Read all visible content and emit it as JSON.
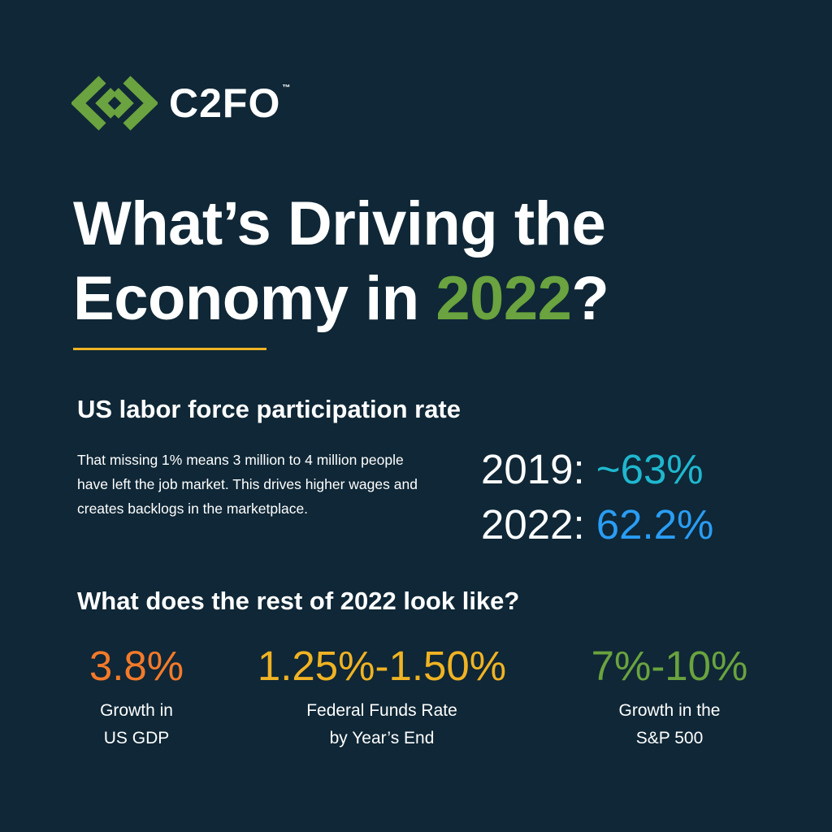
{
  "logo": {
    "wordmark": "C2FO",
    "trademark": "™",
    "icon": "c2fo-chain-link-icon"
  },
  "headline": {
    "line1": "What’s Driving the",
    "line2_prefix": "Economy in ",
    "line2_year": "2022",
    "line2_suffix": "?"
  },
  "labor": {
    "heading": "US labor force participation rate",
    "description": "That missing 1% means 3 million to 4 million people have left the job market. This drives higher wages and creates backlogs in the marketplace.",
    "stats": [
      {
        "year": "2019:",
        "value": "~63%"
      },
      {
        "year": "2022:",
        "value": "62.2%"
      }
    ]
  },
  "outlook": {
    "heading": "What does the rest of 2022 look like?",
    "metrics": [
      {
        "value": "3.8%",
        "caption_line1": "Growth in",
        "caption_line2": "US GDP"
      },
      {
        "value": "1.25%-1.50%",
        "caption_line1": "Federal Funds Rate",
        "caption_line2": "by Year’s End"
      },
      {
        "value": "7%-10%",
        "caption_line1": "Growth in the",
        "caption_line2": "S&P 500"
      }
    ]
  },
  "colors": {
    "background": "#0f2736",
    "brand_green": "#6aa33f",
    "rule_gold": "#f0b323",
    "teal": "#1fb8cf",
    "blue": "#2a9df4",
    "orange": "#f47a2a"
  }
}
